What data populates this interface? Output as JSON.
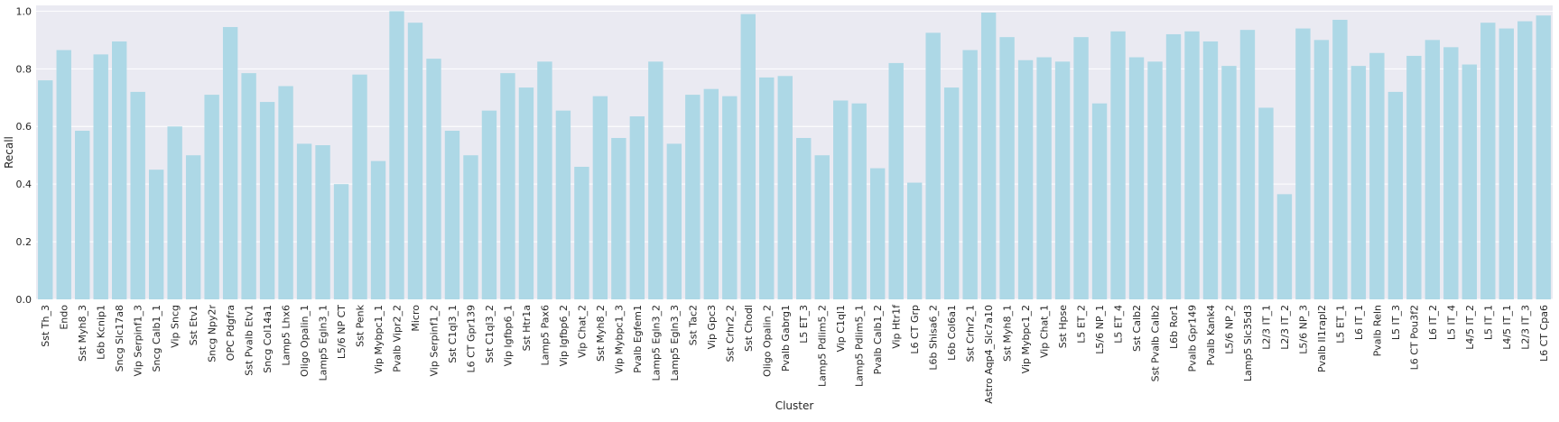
{
  "chart_data": {
    "type": "bar",
    "xlabel": "Cluster",
    "ylabel": "Recall",
    "ylim": [
      0,
      1.02
    ],
    "yticks": [
      "0.0",
      "0.2",
      "0.4",
      "0.6",
      "0.8",
      "1.0"
    ],
    "ytick_values": [
      0,
      0.2,
      0.4,
      0.6,
      0.8,
      1.0
    ],
    "grid": true,
    "bar_color": "#add8e6",
    "background_color": "#eaeaf2",
    "categories": [
      "Sst Th_3",
      "Endo",
      "Sst Myh8_3",
      "L6b Kcnip1",
      "Sncg Slc17a8",
      "Vip Serpinf1_3",
      "Sncg Calb1_1",
      "Vip Sncg",
      "Sst Etv1",
      "Sncg Npy2r",
      "OPC Pdgfra",
      "Sst Pvalb Etv1",
      "Sncg Col14a1",
      "Lamp5 Lhx6",
      "Oligo Opalin_1",
      "Lamp5 Egln3_1",
      "L5/6 NP CT",
      "Sst Penk",
      "Vip Mybpc1_1",
      "Pvalb Vipr2_2",
      "Micro",
      "Vip Serpinf1_2",
      "Sst C1ql3_1",
      "L6 CT Gpr139",
      "Sst C1ql3_2",
      "Vip Igfbp6_1",
      "Sst Htr1a",
      "Lamp5 Pax6",
      "Vip Igfbp6_2",
      "Vip Chat_2",
      "Sst Myh8_2",
      "Vip Mybpc1_3",
      "Pvalb Egfem1",
      "Lamp5 Egln3_2",
      "Lamp5 Egln3_3",
      "Sst Tac2",
      "Vip Gpc3",
      "Sst Crhr2_2",
      "Sst Chodl",
      "Oligo Opalin_2",
      "Pvalb Gabrg1",
      "L5 ET_3",
      "Lamp5 Pdlim5_2",
      "Vip C1ql1",
      "Lamp5 Pdlim5_1",
      "Pvalb Calb1_2",
      "Vip Htr1f",
      "L6 CT Grp",
      "L6b Shisa6_2",
      "L6b Col6a1",
      "Sst Crhr2_1",
      "Astro Aqp4_Slc7a10",
      "Sst Myh8_1",
      "Vip Mybpc1_2",
      "Vip Chat_1",
      "Sst Hpse",
      "L5 ET_2",
      "L5/6 NP_1",
      "L5 ET_4",
      "Sst Calb2",
      "Sst Pvalb Calb2",
      "L6b Ror1",
      "Pvalb Gpr149",
      "Pvalb Kank4",
      "L5/6 NP_2",
      "Lamp5 Slc35d3",
      "L2/3 IT_1",
      "L2/3 IT_2",
      "L5/6 NP_3",
      "Pvalb Il1rapl2",
      "L5 ET_1",
      "L6 IT_1",
      "Pvalb Reln",
      "L5 IT_3",
      "L6 CT Pou3f2",
      "L6 IT_2",
      "L5 IT_4",
      "L4/5 IT_2",
      "L5 IT_1",
      "L4/5 IT_1",
      "L2/3 IT_3",
      "L6 CT Cpa6"
    ],
    "values": [
      0.76,
      0.865,
      0.585,
      0.85,
      0.895,
      0.72,
      0.45,
      0.6,
      0.5,
      0.71,
      0.945,
      0.785,
      0.685,
      0.74,
      0.54,
      0.535,
      0.4,
      0.78,
      0.48,
      1.0,
      0.96,
      0.835,
      0.585,
      0.5,
      0.655,
      0.785,
      0.735,
      0.825,
      0.655,
      0.46,
      0.705,
      0.56,
      0.635,
      0.825,
      0.54,
      0.71,
      0.73,
      0.705,
      0.99,
      0.77,
      0.775,
      0.56,
      0.5,
      0.69,
      0.68,
      0.455,
      0.82,
      0.405,
      0.925,
      0.735,
      0.865,
      0.995,
      0.91,
      0.83,
      0.84,
      0.825,
      0.91,
      0.68,
      0.93,
      0.84,
      0.825,
      0.92,
      0.93,
      0.895,
      0.81,
      0.935,
      0.665,
      0.365,
      0.94,
      0.9,
      0.97,
      0.81,
      0.855,
      0.72,
      0.845,
      0.9,
      0.875,
      0.815,
      0.96,
      0.94,
      0.965,
      0.985
    ]
  }
}
